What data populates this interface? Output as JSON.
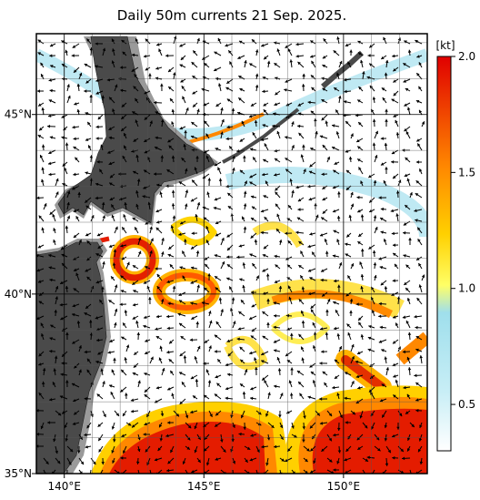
{
  "map": {
    "title": "Daily 50m currents 21 Sep. 2025.",
    "lonlim": [
      139,
      153
    ],
    "latlim": [
      35,
      47.25
    ],
    "xticks": [
      {
        "value": 140,
        "label": "140°E"
      },
      {
        "value": 145,
        "label": "145°E"
      },
      {
        "value": 150,
        "label": "150°E"
      }
    ],
    "yticks": [
      {
        "value": 35,
        "label": "35°N"
      },
      {
        "value": 40,
        "label": "40°N"
      },
      {
        "value": 45,
        "label": "45°N"
      }
    ]
  },
  "colorbar": {
    "unit": "[kt]",
    "lim": [
      0.3,
      2.0
    ],
    "ticks": [
      0.5,
      {
        "value": 1,
        "label": "1.0"
      },
      1.5,
      {
        "value": 2,
        "label": "2.0"
      }
    ]
  }
}
